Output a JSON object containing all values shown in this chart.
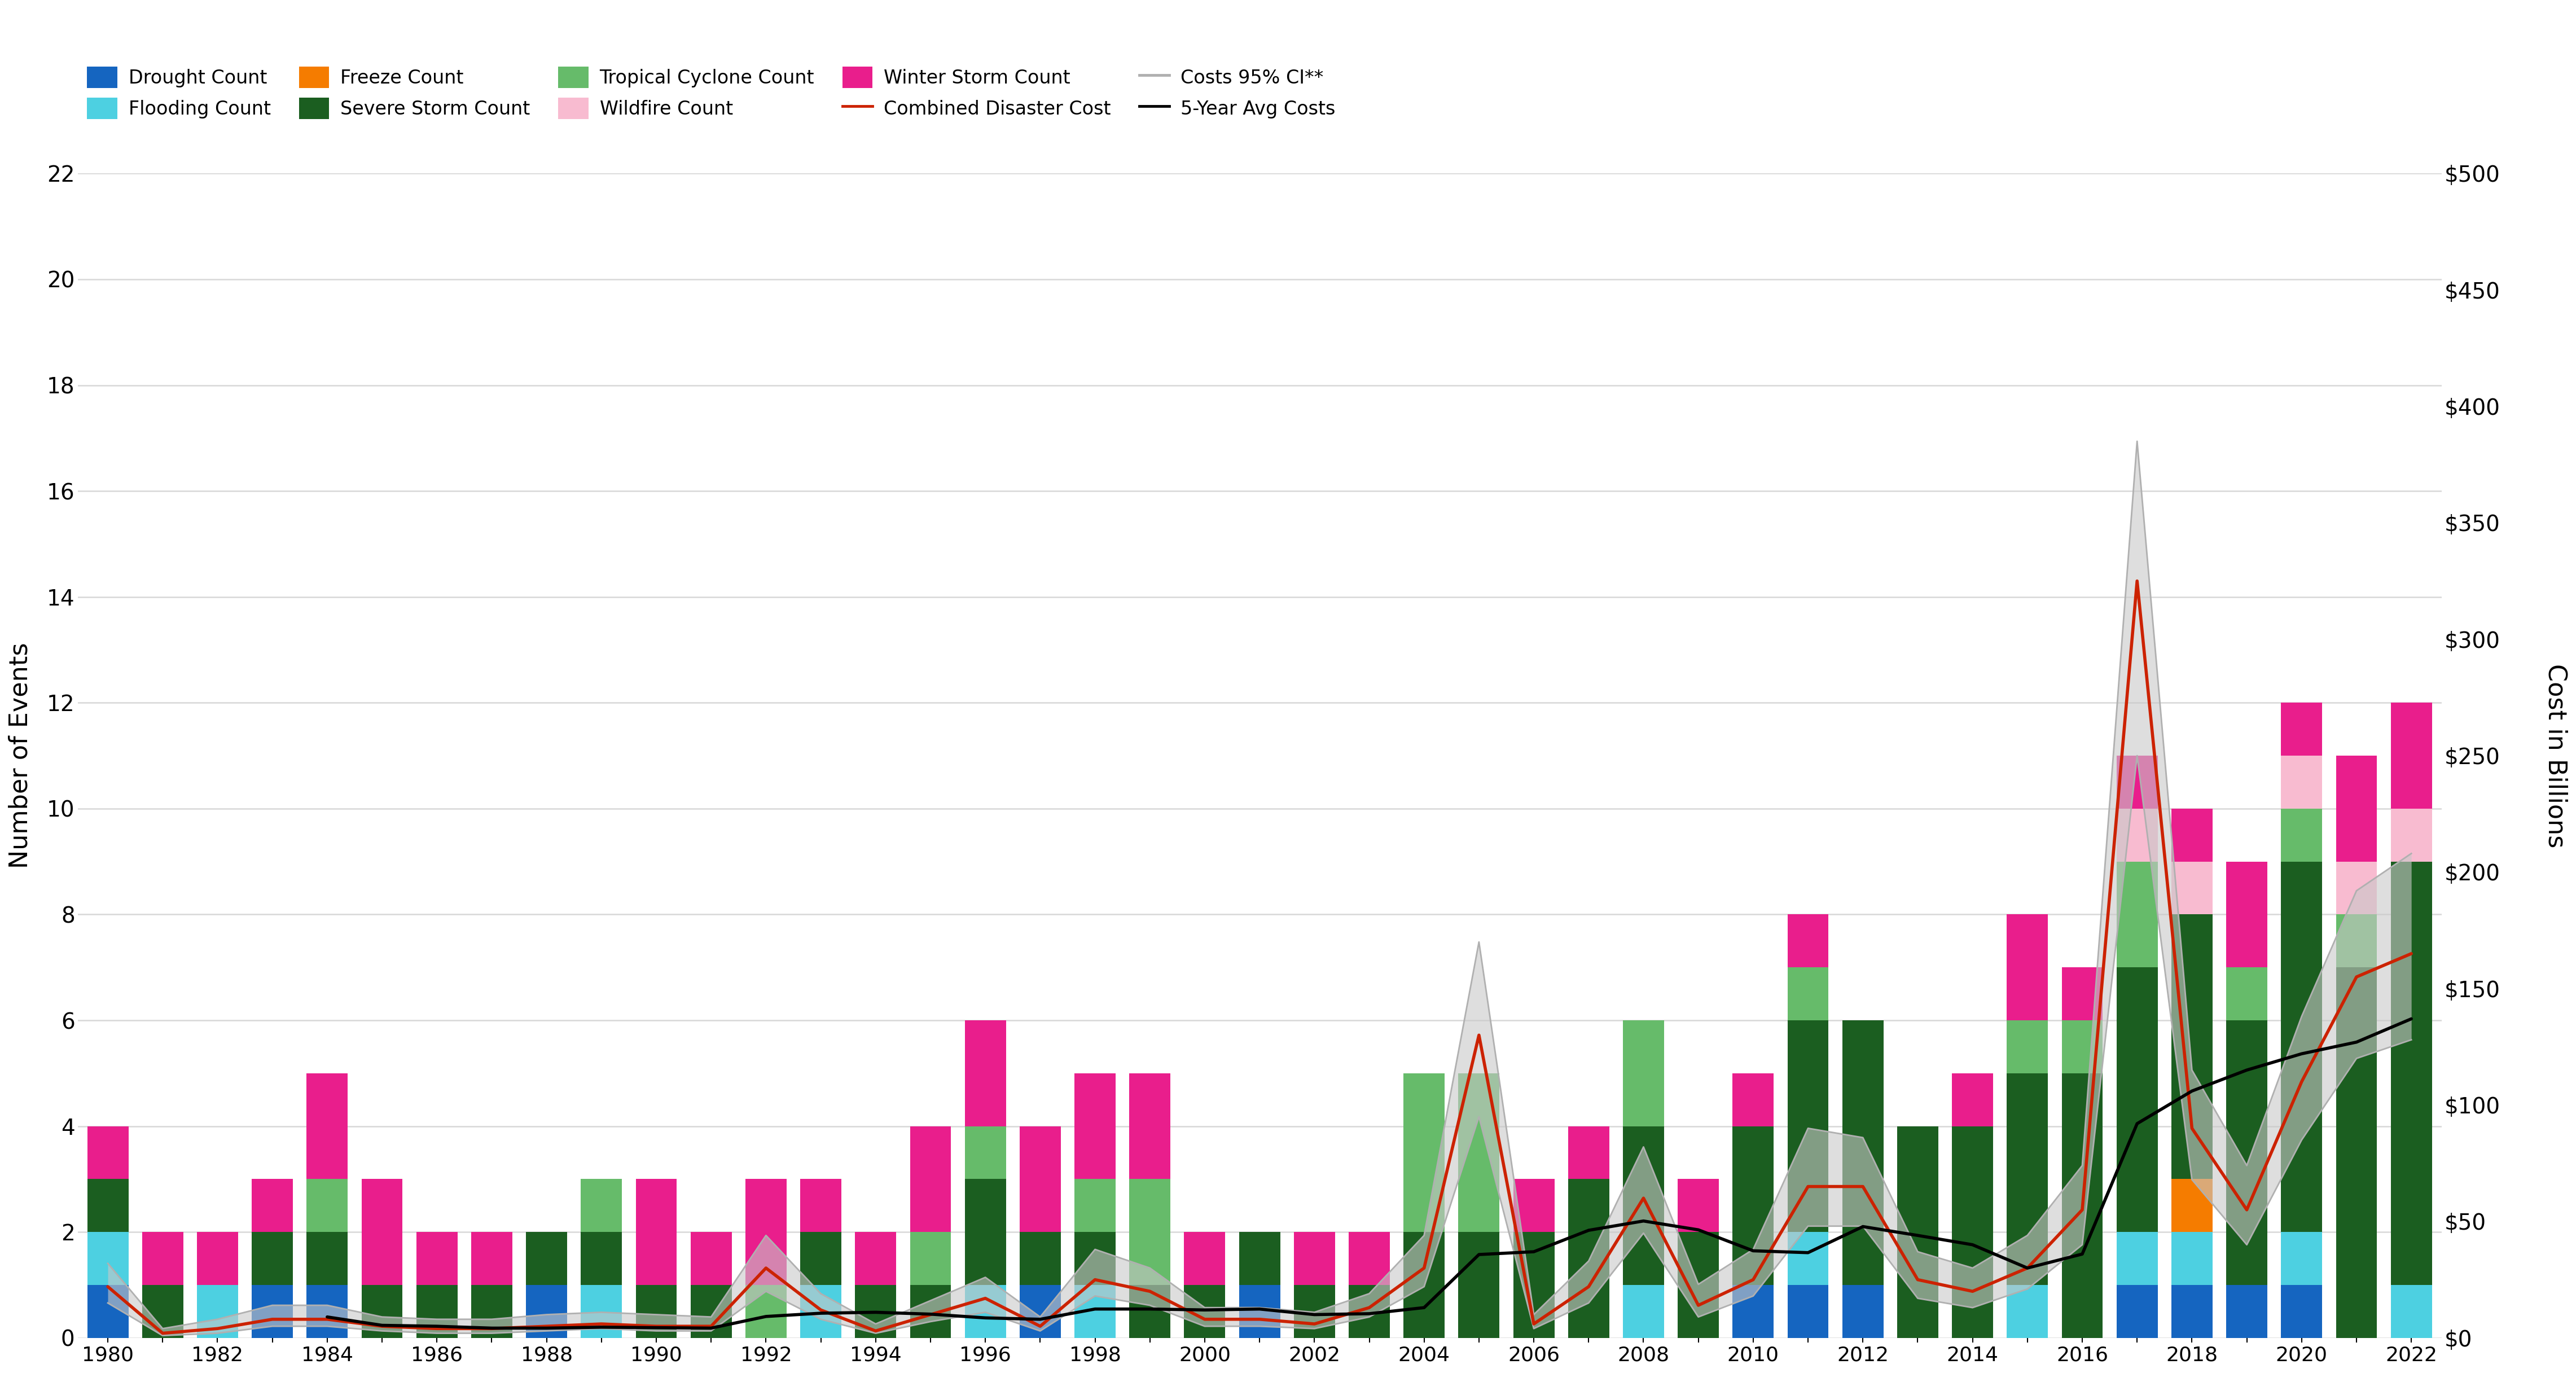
{
  "years": [
    1980,
    1981,
    1982,
    1983,
    1984,
    1985,
    1986,
    1987,
    1988,
    1989,
    1990,
    1991,
    1992,
    1993,
    1994,
    1995,
    1996,
    1997,
    1998,
    1999,
    2000,
    2001,
    2002,
    2003,
    2004,
    2005,
    2006,
    2007,
    2008,
    2009,
    2010,
    2011,
    2012,
    2013,
    2014,
    2015,
    2016,
    2017,
    2018,
    2019,
    2020,
    2021,
    2022
  ],
  "drought": [
    1,
    0,
    0,
    1,
    1,
    0,
    0,
    0,
    1,
    0,
    0,
    0,
    0,
    0,
    0,
    0,
    0,
    1,
    0,
    0,
    0,
    1,
    0,
    0,
    0,
    0,
    0,
    0,
    0,
    0,
    1,
    1,
    1,
    0,
    0,
    0,
    0,
    1,
    1,
    1,
    1,
    0,
    0
  ],
  "flooding": [
    1,
    0,
    1,
    0,
    0,
    0,
    0,
    0,
    0,
    1,
    0,
    0,
    0,
    1,
    0,
    0,
    1,
    0,
    1,
    0,
    0,
    0,
    0,
    0,
    0,
    0,
    0,
    0,
    1,
    0,
    0,
    1,
    0,
    0,
    0,
    1,
    0,
    1,
    1,
    0,
    1,
    0,
    1
  ],
  "freeze": [
    0,
    0,
    0,
    0,
    0,
    0,
    0,
    0,
    0,
    0,
    0,
    0,
    0,
    0,
    0,
    0,
    0,
    0,
    0,
    0,
    0,
    0,
    0,
    0,
    0,
    0,
    0,
    0,
    0,
    0,
    0,
    0,
    0,
    0,
    0,
    0,
    0,
    0,
    1,
    0,
    0,
    0,
    0
  ],
  "severe_storm": [
    1,
    1,
    0,
    1,
    1,
    1,
    1,
    1,
    1,
    1,
    1,
    1,
    0,
    1,
    1,
    1,
    2,
    1,
    1,
    1,
    1,
    1,
    1,
    1,
    2,
    2,
    2,
    3,
    3,
    2,
    3,
    4,
    5,
    4,
    4,
    4,
    5,
    5,
    5,
    5,
    7,
    7,
    8
  ],
  "tropical": [
    0,
    0,
    0,
    0,
    1,
    0,
    0,
    0,
    0,
    1,
    0,
    0,
    1,
    0,
    0,
    1,
    1,
    0,
    1,
    2,
    0,
    0,
    0,
    0,
    3,
    3,
    0,
    0,
    2,
    0,
    0,
    1,
    0,
    0,
    0,
    1,
    1,
    2,
    0,
    1,
    1,
    1,
    0
  ],
  "wildfire": [
    0,
    0,
    0,
    0,
    0,
    0,
    0,
    0,
    0,
    0,
    0,
    0,
    0,
    0,
    0,
    0,
    0,
    0,
    0,
    0,
    0,
    0,
    0,
    0,
    0,
    0,
    0,
    0,
    0,
    0,
    0,
    0,
    0,
    0,
    0,
    0,
    0,
    1,
    1,
    0,
    1,
    1,
    1
  ],
  "winter_storm": [
    1,
    1,
    1,
    1,
    2,
    2,
    1,
    1,
    0,
    0,
    2,
    1,
    2,
    1,
    1,
    2,
    2,
    2,
    2,
    2,
    1,
    0,
    1,
    1,
    0,
    0,
    1,
    1,
    0,
    1,
    1,
    1,
    0,
    0,
    1,
    2,
    1,
    1,
    1,
    2,
    1,
    2,
    2
  ],
  "combined_cost": [
    22,
    2,
    4,
    8,
    8,
    5,
    4,
    4,
    5,
    6,
    5,
    5,
    30,
    12,
    3,
    10,
    17,
    5,
    25,
    20,
    8,
    8,
    6,
    13,
    30,
    130,
    6,
    22,
    60,
    14,
    25,
    65,
    65,
    25,
    20,
    30,
    55,
    325,
    90,
    55,
    110,
    155,
    165
  ],
  "cost_ci_low": [
    15,
    1,
    2,
    5,
    5,
    3,
    2,
    2,
    3,
    4,
    3,
    3,
    20,
    8,
    2,
    7,
    11,
    3,
    18,
    14,
    5,
    5,
    4,
    9,
    22,
    95,
    4,
    15,
    45,
    9,
    18,
    48,
    48,
    17,
    13,
    21,
    40,
    250,
    68,
    40,
    85,
    120,
    128
  ],
  "cost_ci_high": [
    32,
    4,
    8,
    14,
    14,
    9,
    8,
    8,
    10,
    11,
    10,
    9,
    44,
    19,
    6,
    16,
    26,
    9,
    38,
    30,
    13,
    13,
    11,
    19,
    44,
    170,
    10,
    33,
    82,
    23,
    38,
    90,
    86,
    37,
    30,
    44,
    74,
    385,
    115,
    74,
    138,
    192,
    208
  ],
  "avg5_cost": [
    null,
    null,
    null,
    null,
    9.0,
    5.4,
    5.0,
    4.2,
    4.2,
    4.6,
    4.4,
    4.2,
    9.2,
    10.6,
    11.0,
    10.2,
    8.6,
    8.0,
    12.4,
    12.4,
    12.0,
    12.4,
    10.0,
    10.4,
    13.0,
    35.8,
    37.0,
    46.2,
    50.2,
    46.4,
    37.4,
    36.6,
    47.8,
    44.0,
    40.0,
    30.0,
    36.0,
    92.0,
    106.0,
    115.0,
    122.0,
    127.0,
    137.0
  ],
  "bar_colors": {
    "drought": "#1565c0",
    "flooding": "#4dd0e1",
    "freeze": "#f57c00",
    "severe_storm": "#1b5e20",
    "tropical": "#66bb6a",
    "wildfire": "#f8bbd0",
    "winter_storm": "#e91e8c"
  },
  "cost_line_color": "#cc2200",
  "ci_fill_color": "#c8c8c8",
  "ci_line_color": "#b0b0b0",
  "avg5_color": "#000000",
  "background_color": "#ffffff",
  "grid_color": "#d8d8d8",
  "ylabel_left": "Number of Events",
  "ylabel_right": "Cost in Billions",
  "ylim_left": [
    0,
    22
  ],
  "ylim_right": [
    0,
    500
  ],
  "yticks_left": [
    0,
    2,
    4,
    6,
    8,
    10,
    12,
    14,
    16,
    18,
    20,
    22
  ],
  "yticks_right": [
    0,
    50,
    100,
    150,
    200,
    250,
    300,
    350,
    400,
    450,
    500
  ],
  "ytick_labels_right": [
    "$0",
    "$50",
    "$100",
    "$150",
    "$200",
    "$250",
    "$300",
    "$350",
    "$400",
    "$450",
    "$500"
  ],
  "legend_row1": [
    "Drought Count",
    "Flooding Count",
    "Freeze Count",
    "Severe Storm Count",
    "Tropical Cyclone Count"
  ],
  "legend_row2": [
    "Wildfire Count",
    "Winter Storm Count",
    "Combined Disaster Cost",
    "Costs 95% CI**",
    "5-Year Avg Costs"
  ]
}
